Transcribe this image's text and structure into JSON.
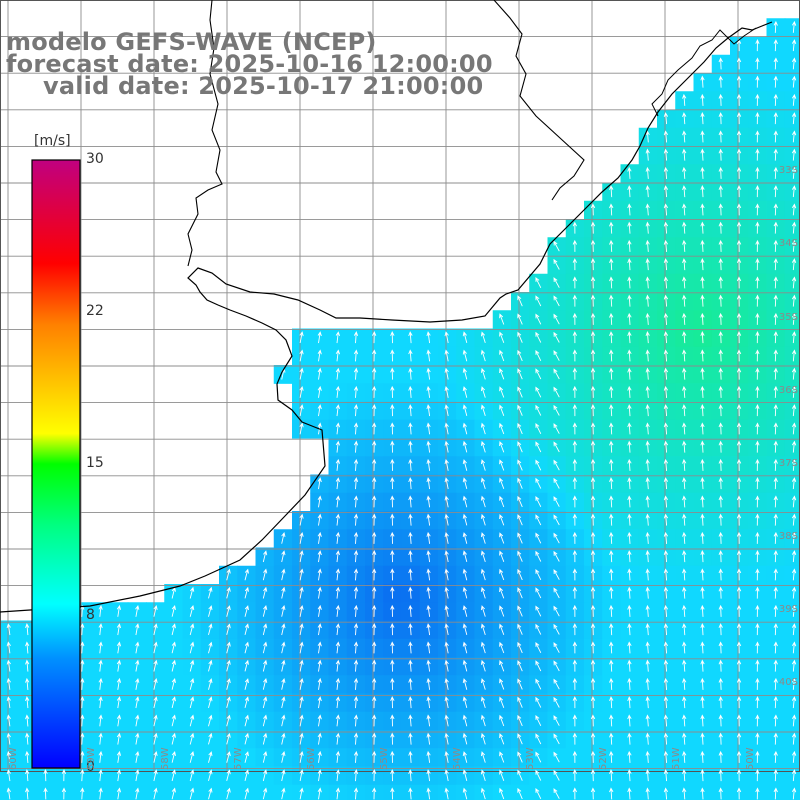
{
  "titles": {
    "line1": "modelo GEFS-WAVE (NCEP)",
    "line2": "forecast date: 2025-10-16 12:00:00",
    "line3": "valid date: 2025-10-17 21:00:00"
  },
  "colorbar": {
    "unit": "[m/s]",
    "ticks": [
      "30",
      "22",
      "15",
      "8",
      "0"
    ],
    "tick_values": [
      30,
      22,
      15,
      8,
      0
    ],
    "min": 0,
    "max": 30,
    "colors": [
      "#0000ff",
      "#00a0ff",
      "#00ffff",
      "#00ff00",
      "#ffff00",
      "#ff8000",
      "#ff0000",
      "#c00080"
    ]
  },
  "map": {
    "variable": "wind speed with direction arrows",
    "ocean_colors": {
      "low": "#0a6cf0",
      "mid": "#10d8ff",
      "high": "#18ee8a"
    },
    "land_color": "#ffffff",
    "coast_color": "#000000",
    "grid_color": "#8c8c8c",
    "arrow_color": "#ffffff",
    "lat_labels": [
      "33S",
      "34S",
      "35S",
      "36S",
      "37S",
      "38S",
      "39S",
      "40S"
    ],
    "lon_labels": [
      "60W",
      "59W",
      "58W",
      "57W",
      "56W",
      "55W",
      "54W",
      "53W",
      "52W",
      "51W",
      "50W"
    ]
  }
}
